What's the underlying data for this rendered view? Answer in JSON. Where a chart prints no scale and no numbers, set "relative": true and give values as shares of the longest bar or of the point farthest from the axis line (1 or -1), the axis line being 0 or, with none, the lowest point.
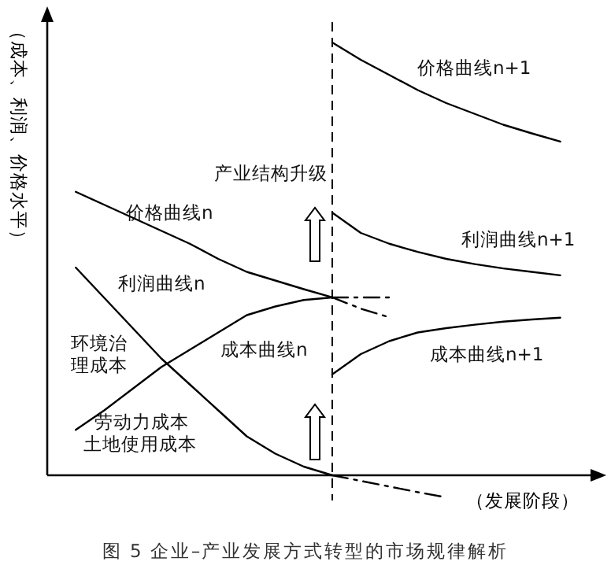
{
  "chart_data": {
    "type": "line",
    "relative": true,
    "title": "图 5  企业–产业发展方式转型的市场规律解析",
    "xlabel": "（发展阶段）",
    "ylabel": "（成本、利润、价格水平）",
    "marker": "none",
    "categories": [
      null,
      null,
      null,
      null,
      null,
      null,
      null,
      null,
      null,
      null,
      null,
      null,
      null,
      null,
      null,
      null,
      null,
      null,
      null,
      null
    ],
    "series": [
      {
        "color": "#000000",
        "line_style": "solid",
        "values": [
          null,
          0.655,
          0.625,
          0.595,
          0.565,
          0.535,
          0.5,
          0.47,
          0.45,
          0.43,
          0.411,
          null,
          null,
          null,
          null,
          null,
          null,
          null,
          null,
          null
        ]
      },
      {
        "color": "#000000",
        "line_style": "dashdot",
        "values": [
          null,
          null,
          null,
          null,
          null,
          null,
          null,
          null,
          null,
          null,
          0.411,
          0.385,
          0.365,
          null,
          null,
          null,
          null,
          null,
          null,
          null
        ]
      },
      {
        "color": "#000000",
        "line_style": "solid",
        "values": [
          null,
          0.105,
          0.15,
          0.2,
          0.25,
          0.29,
          0.33,
          0.37,
          0.39,
          0.405,
          0.411,
          null,
          null,
          null,
          null,
          null,
          null,
          null,
          null,
          null
        ]
      },
      {
        "color": "#000000",
        "line_style": "dashdot",
        "values": [
          null,
          null,
          null,
          null,
          null,
          null,
          null,
          null,
          null,
          null,
          0.411,
          0.411,
          0.411,
          null,
          null,
          null,
          null,
          null,
          null,
          null
        ]
      },
      {
        "color": "#000000",
        "line_style": "solid",
        "values": [
          null,
          0.48,
          0.41,
          0.34,
          0.27,
          0.21,
          0.15,
          0.09,
          0.05,
          0.02,
          0,
          null,
          null,
          null,
          null,
          null,
          null,
          null,
          null,
          null
        ]
      },
      {
        "color": "#000000",
        "line_style": "dashdot",
        "values": [
          null,
          null,
          null,
          null,
          null,
          null,
          null,
          null,
          null,
          null,
          0,
          -0.013,
          -0.026,
          -0.039,
          -0.051,
          null,
          null,
          null,
          null,
          null
        ]
      },
      {
        "color": "#000000",
        "line_style": "solid",
        "values": [
          null,
          null,
          null,
          null,
          null,
          null,
          null,
          null,
          null,
          null,
          1,
          0.96,
          0.925,
          0.89,
          0.86,
          0.835,
          0.81,
          0.79,
          0.771,
          null
        ]
      },
      {
        "color": "#000000",
        "line_style": "solid",
        "values": [
          null,
          null,
          null,
          null,
          null,
          null,
          null,
          null,
          null,
          null,
          0.607,
          0.56,
          0.535,
          0.516,
          0.5,
          0.488,
          0.478,
          0.47,
          0.462,
          null
        ]
      },
      {
        "color": "#000000",
        "line_style": "solid",
        "values": [
          null,
          null,
          null,
          null,
          null,
          null,
          null,
          null,
          null,
          null,
          0.233,
          0.28,
          0.31,
          0.33,
          0.34,
          0.348,
          0.355,
          0.36,
          0.364,
          null
        ]
      }
    ],
    "annotations": [
      "价格曲线n+1",
      "价格曲线n",
      "利润曲线n+1",
      "利润曲线n",
      "成本曲线n",
      "成本曲线n+1",
      "产业结构升级",
      "环境治理成本",
      "劳动力成本土地使用成本"
    ]
  }
}
